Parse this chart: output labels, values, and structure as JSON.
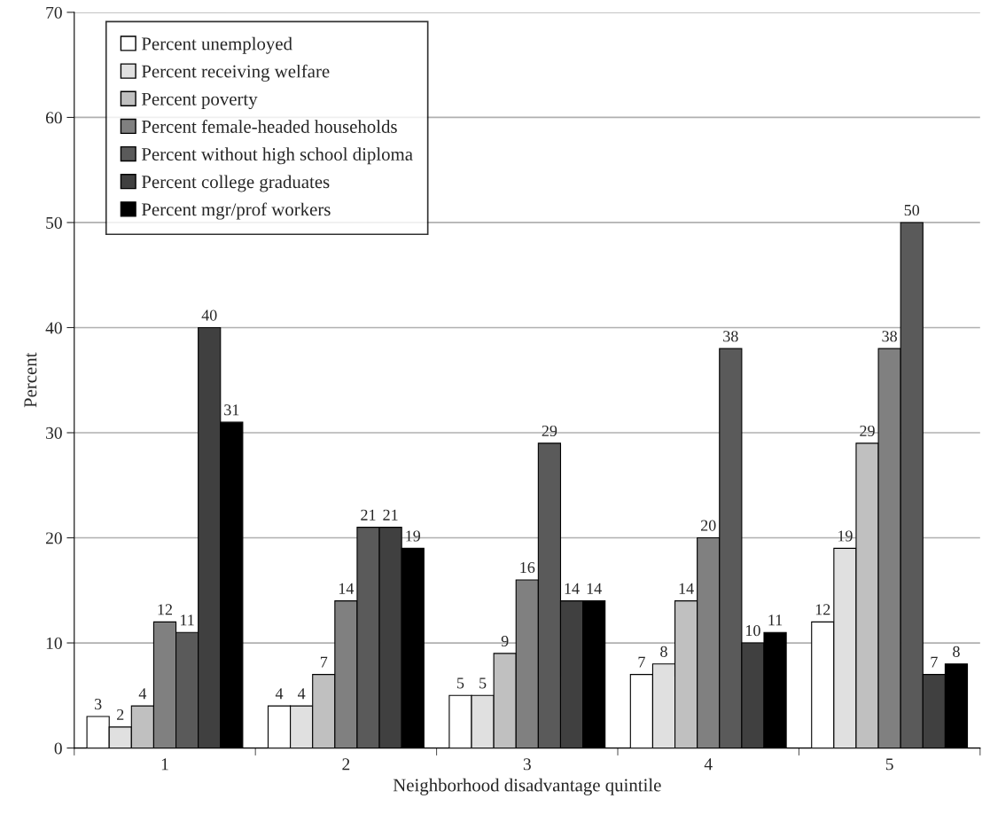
{
  "chart_data": {
    "type": "bar",
    "xlabel": "Neighborhood disadvantage quintile",
    "ylabel": "Percent",
    "categories": [
      "1",
      "2",
      "3",
      "4",
      "5"
    ],
    "series": [
      {
        "name": "Percent unemployed",
        "color": "#ffffff",
        "values": [
          3,
          4,
          5,
          7,
          12
        ]
      },
      {
        "name": "Percent receiving welfare",
        "color": "#e0e0e0",
        "values": [
          2,
          4,
          5,
          8,
          19
        ]
      },
      {
        "name": "Percent poverty",
        "color": "#c0c0c0",
        "values": [
          4,
          7,
          9,
          14,
          29
        ]
      },
      {
        "name": "Percent female-headed households",
        "color": "#808080",
        "values": [
          12,
          14,
          16,
          20,
          38
        ]
      },
      {
        "name": "Percent without high school diploma",
        "color": "#5a5a5a",
        "values": [
          11,
          21,
          29,
          38,
          50
        ]
      },
      {
        "name": "Percent college graduates",
        "color": "#404040",
        "values": [
          40,
          21,
          14,
          10,
          7
        ]
      },
      {
        "name": "Percent mgr/prof workers",
        "color": "#000000",
        "values": [
          31,
          19,
          14,
          11,
          8
        ]
      }
    ],
    "ylim": [
      0,
      70
    ],
    "yticks": [
      0,
      10,
      20,
      30,
      40,
      50,
      60,
      70
    ],
    "grid": "y",
    "legend": "top left",
    "data_labels": true
  }
}
